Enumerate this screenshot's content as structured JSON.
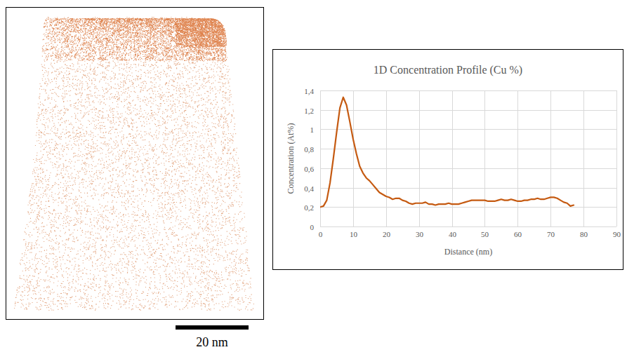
{
  "chart_data": {
    "type": "line",
    "title": "1D Concentration Profile (Cu %)",
    "x_label": "Distance (nm)",
    "y_label": "Concentration (At%)",
    "x": [
      0,
      1,
      2,
      3,
      4,
      5,
      6,
      7,
      8,
      9,
      10,
      11,
      12,
      13,
      14,
      15,
      16,
      17,
      18,
      19,
      20,
      21,
      22,
      23,
      24,
      25,
      26,
      27,
      28,
      29,
      30,
      31,
      32,
      33,
      34,
      35,
      36,
      37,
      38,
      39,
      40,
      41,
      42,
      43,
      44,
      45,
      46,
      47,
      48,
      49,
      50,
      51,
      52,
      53,
      54,
      55,
      56,
      57,
      58,
      59,
      60,
      61,
      62,
      63,
      64,
      65,
      66,
      67,
      68,
      69,
      70,
      71,
      72,
      73,
      74,
      75,
      76,
      77
    ],
    "values": [
      0.2,
      0.21,
      0.27,
      0.45,
      0.7,
      0.97,
      1.22,
      1.33,
      1.25,
      1.08,
      0.9,
      0.75,
      0.62,
      0.55,
      0.5,
      0.47,
      0.43,
      0.39,
      0.35,
      0.33,
      0.31,
      0.3,
      0.28,
      0.29,
      0.29,
      0.27,
      0.26,
      0.24,
      0.23,
      0.24,
      0.24,
      0.24,
      0.25,
      0.23,
      0.23,
      0.22,
      0.23,
      0.23,
      0.23,
      0.24,
      0.23,
      0.23,
      0.23,
      0.24,
      0.25,
      0.26,
      0.27,
      0.27,
      0.27,
      0.27,
      0.27,
      0.26,
      0.26,
      0.26,
      0.27,
      0.28,
      0.27,
      0.27,
      0.28,
      0.27,
      0.26,
      0.26,
      0.27,
      0.27,
      0.28,
      0.28,
      0.29,
      0.28,
      0.28,
      0.29,
      0.3,
      0.3,
      0.29,
      0.27,
      0.25,
      0.24,
      0.21,
      0.22
    ],
    "color": "#c55a11",
    "xlim": [
      0,
      90
    ],
    "xticks": [
      0,
      10,
      20,
      30,
      40,
      50,
      60,
      70,
      80,
      90
    ],
    "ylim": [
      0,
      1.4
    ],
    "yticks": [
      0,
      {
        "value": 0.2,
        "label": "0,2"
      },
      {
        "value": 0.4,
        "label": "0,4"
      },
      {
        "value": 0.6,
        "label": "0,6"
      },
      {
        "value": 0.8,
        "label": "0,8"
      },
      1,
      {
        "value": 1.2,
        "label": "1,2"
      },
      {
        "value": 1.4,
        "label": "1,4"
      }
    ],
    "grid": true
  },
  "scale_bar": {
    "label": "20 nm"
  }
}
